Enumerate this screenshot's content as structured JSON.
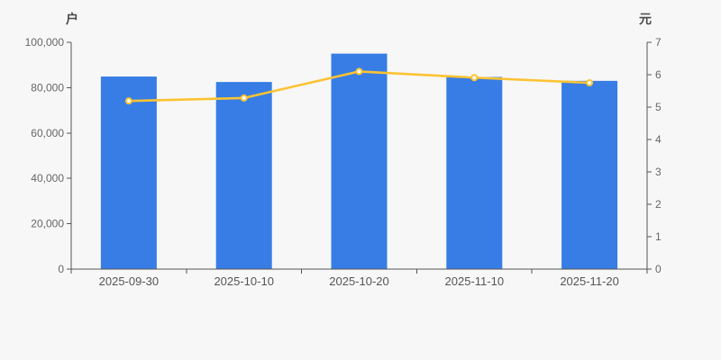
{
  "page": {
    "background": "#f7f7f7"
  },
  "axes": {
    "left_title": "户",
    "right_title": "元"
  },
  "chart_data": {
    "type": "bar",
    "title": "",
    "categories": [
      "2025-09-30",
      "2025-10-10",
      "2025-10-20",
      "2025-11-10",
      "2025-11-20"
    ],
    "series": [
      {
        "type": "bar",
        "yaxis": "left",
        "values": [
          84900,
          82500,
          95000,
          84700,
          83000
        ]
      },
      {
        "type": "line",
        "yaxis": "right",
        "values": [
          5.19,
          5.28,
          6.1,
          5.91,
          5.75
        ]
      }
    ],
    "left_axis": {
      "title": "户",
      "tick_labels": [
        "0",
        "20,000",
        "40,000",
        "60,000",
        "80,000",
        "100,000"
      ],
      "ylim": [
        0,
        100000
      ]
    },
    "right_axis": {
      "title": "元",
      "tick_labels": [
        "0",
        "1",
        "2",
        "3",
        "4",
        "5",
        "6",
        "7"
      ],
      "ylim": [
        0,
        7
      ]
    },
    "grid": false,
    "legend": false,
    "colors": {
      "bar": "#377de5",
      "line": "#fcc332",
      "dot_fill": "#ffffff",
      "axis_line": "#555555",
      "tick_label": "#666666",
      "category_label": "#555555"
    }
  }
}
